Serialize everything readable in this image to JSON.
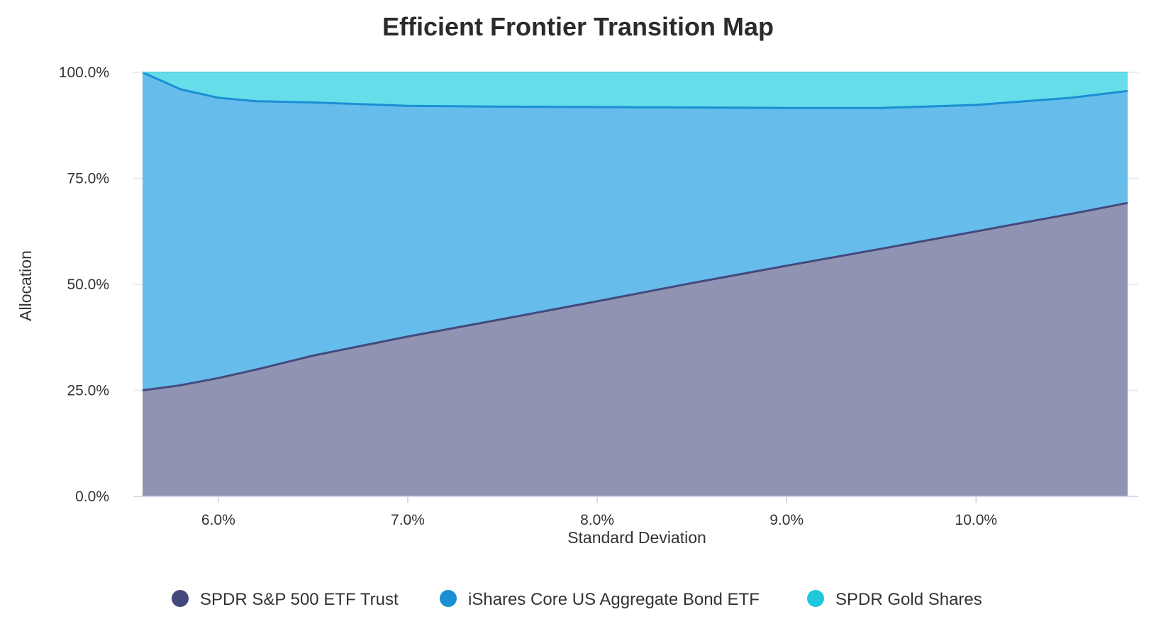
{
  "chart_data": {
    "type": "area",
    "stacked": true,
    "title": "Efficient Frontier Transition Map",
    "xlabel": "Standard Deviation",
    "ylabel": "Allocation",
    "xlim": [
      5.6,
      10.8
    ],
    "ylim": [
      0,
      100
    ],
    "x_ticks": [
      6.0,
      7.0,
      8.0,
      9.0,
      10.0
    ],
    "x_tick_labels": [
      "6.0%",
      "7.0%",
      "8.0%",
      "9.0%",
      "10.0%"
    ],
    "y_ticks": [
      0,
      25,
      50,
      75,
      100
    ],
    "y_tick_labels": [
      "0.0%",
      "25.0%",
      "50.0%",
      "75.0%",
      "100.0%"
    ],
    "grid": true,
    "legend_position": "bottom",
    "x": [
      5.6,
      5.8,
      6.0,
      6.2,
      6.5,
      7.0,
      7.5,
      8.0,
      8.5,
      9.0,
      9.5,
      10.0,
      10.5,
      10.8
    ],
    "series": [
      {
        "name": "SPDR S&P 500 ETF Trust",
        "color": "#44497d",
        "fill": "#9094b2",
        "values": [
          25.0,
          26.2,
          27.9,
          29.9,
          33.2,
          37.7,
          41.8,
          46.0,
          50.3,
          54.4,
          58.4,
          62.5,
          66.6,
          69.2
        ]
      },
      {
        "name": "iShares Core US Aggregate Bond ETF",
        "color": "#1b8fd4",
        "fill": "#66bcea",
        "values": [
          75.0,
          69.8,
          66.1,
          63.3,
          59.7,
          54.4,
          50.1,
          45.8,
          41.4,
          37.2,
          33.2,
          29.8,
          27.4,
          26.4
        ]
      },
      {
        "name": "SPDR Gold Shares",
        "color": "#1ec8dc",
        "fill": "#66dde9",
        "values": [
          0.0,
          4.0,
          6.0,
          6.8,
          7.1,
          7.9,
          8.1,
          8.2,
          8.3,
          8.4,
          8.4,
          7.7,
          6.0,
          4.4
        ]
      }
    ]
  }
}
